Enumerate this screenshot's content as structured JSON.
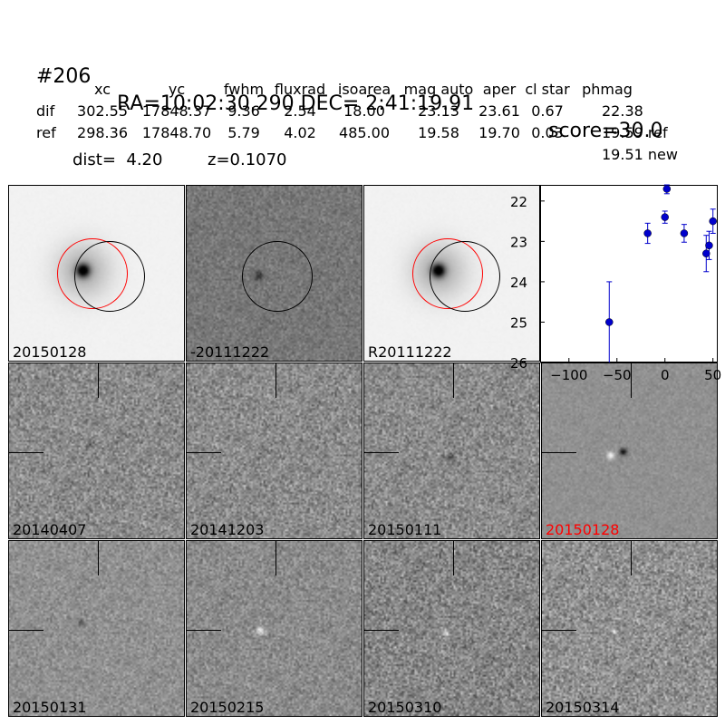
{
  "header": {
    "id": "#206",
    "coords": "RA=10:02:30.290 DEC= 2:41:19.91",
    "score": "score=30.0"
  },
  "table": {
    "columns": [
      "xc",
      "yc",
      "fwhm",
      "fluxrad",
      "isoarea",
      "mag auto",
      "aper",
      "cl star",
      "phmag"
    ],
    "rows": [
      {
        "label": "dif",
        "values": [
          "302.55",
          "17848.37",
          "9.36",
          "2.54",
          "18.00",
          "23.13",
          "23.61",
          "0.67",
          "22.38"
        ]
      },
      {
        "label": "ref",
        "values": [
          "298.36",
          "17848.70",
          "5.79",
          "4.02",
          "485.00",
          "19.58",
          "19.70",
          "0.03",
          "19.59 ref"
        ]
      }
    ],
    "extra_phmag": "19.51 new",
    "dist": "dist=  4.20",
    "z": "z=0.1070"
  },
  "panels": {
    "top": [
      "20150128",
      "-20111222",
      "R20111222"
    ],
    "row2": [
      "20140407",
      "20141203",
      "20150111",
      "20150128"
    ],
    "row3": [
      "20150131",
      "20150215",
      "20150310",
      "20150314"
    ],
    "highlight_color": "#ff0000"
  },
  "chart_data": {
    "type": "scatter",
    "x": [
      -58,
      -18,
      0,
      2,
      20,
      43,
      46,
      50
    ],
    "y": [
      25.0,
      22.8,
      22.4,
      21.7,
      22.8,
      23.3,
      23.1,
      22.5
    ],
    "yerr": [
      1.0,
      0.25,
      0.15,
      0.12,
      0.22,
      0.45,
      0.35,
      0.3
    ],
    "xlim": [
      -130,
      55
    ],
    "ylim": [
      26,
      21.6
    ],
    "xticks": [
      "-100",
      "-50",
      "0",
      "50"
    ],
    "yticks": [
      "22",
      "23",
      "24",
      "25",
      "26"
    ],
    "marker_color": "#0000cc",
    "title": "",
    "xlabel": "",
    "ylabel": ""
  }
}
